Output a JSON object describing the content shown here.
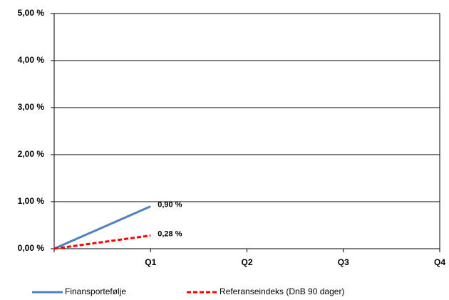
{
  "chart_data": {
    "type": "line",
    "categories": [
      null,
      "Q1",
      "Q2",
      "Q3",
      "Q4"
    ],
    "series": [
      {
        "name": "Finansportefølje",
        "color": "#4f81bd",
        "dash": false,
        "values": [
          0,
          0.9,
          null,
          null,
          null
        ],
        "value_labels": [
          null,
          "0,90 %",
          null,
          null,
          null
        ]
      },
      {
        "name": "Referanseindeks (DnB 90 dager)",
        "color": "#ff0000",
        "dash": true,
        "values": [
          0,
          0.28,
          null,
          null,
          null
        ],
        "value_labels": [
          null,
          "0,28 %",
          null,
          null,
          null
        ]
      }
    ],
    "ylim": [
      0,
      5
    ],
    "yticks": [
      {
        "value": 0,
        "label": "0,00 %"
      },
      {
        "value": 1,
        "label": "1,00 %"
      },
      {
        "value": 2,
        "label": "2,00 %"
      },
      {
        "value": 3,
        "label": "3,00 %"
      },
      {
        "value": 4,
        "label": "4,00 %"
      },
      {
        "value": 5,
        "label": "5,00 %"
      }
    ],
    "grid": true
  }
}
